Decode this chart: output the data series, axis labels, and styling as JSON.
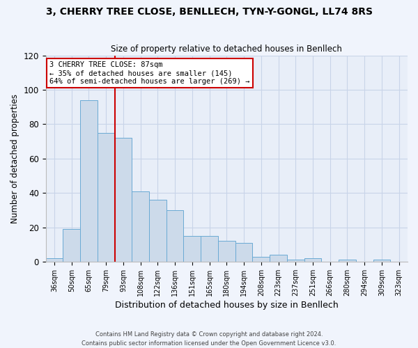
{
  "title_line1": "3, CHERRY TREE CLOSE, BENLLECH, TYN-Y-GONGL, LL74 8RS",
  "title_line2": "Size of property relative to detached houses in Benllech",
  "xlabel": "Distribution of detached houses by size in Benllech",
  "ylabel": "Number of detached properties",
  "categories": [
    "36sqm",
    "50sqm",
    "65sqm",
    "79sqm",
    "93sqm",
    "108sqm",
    "122sqm",
    "136sqm",
    "151sqm",
    "165sqm",
    "180sqm",
    "194sqm",
    "208sqm",
    "223sqm",
    "237sqm",
    "251sqm",
    "266sqm",
    "280sqm",
    "294sqm",
    "309sqm",
    "323sqm"
  ],
  "values": [
    2,
    19,
    94,
    75,
    72,
    41,
    36,
    30,
    15,
    15,
    12,
    11,
    3,
    4,
    1,
    2,
    0,
    1,
    0,
    1,
    0
  ],
  "bar_color": "#ccdaea",
  "bar_edge_color": "#6aaad4",
  "vline_color": "#cc0000",
  "vline_pos": 3.5,
  "annotation_line1": "3 CHERRY TREE CLOSE: 87sqm",
  "annotation_line2": "← 35% of detached houses are smaller (145)",
  "annotation_line3": "64% of semi-detached houses are larger (269) →",
  "annotation_box_color": "#cc0000",
  "ylim": [
    0,
    120
  ],
  "yticks": [
    0,
    20,
    40,
    60,
    80,
    100,
    120
  ],
  "grid_color": "#c8d4e8",
  "background_color": "#e8eef8",
  "fig_background_color": "#f0f4fc",
  "footer_text": "Contains HM Land Registry data © Crown copyright and database right 2024.\nContains public sector information licensed under the Open Government Licence v3.0."
}
